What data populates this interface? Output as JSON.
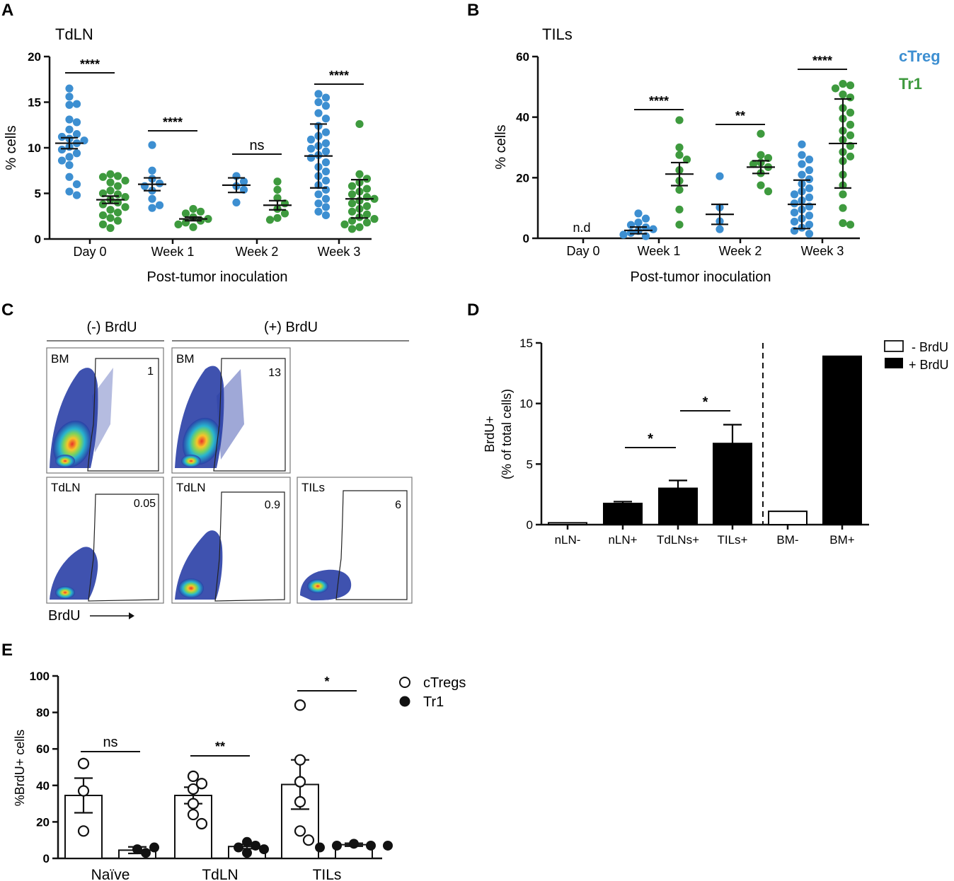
{
  "colors": {
    "ctreg": "#3d8fd1",
    "tr1": "#3e9a3e",
    "axis": "#111111"
  },
  "chart_data": [
    {
      "panel": "A",
      "type": "scatter",
      "title": "TdLN",
      "xlabel": "Post-tumor inoculation",
      "ylabel": "% cells",
      "ylim": [
        0,
        20
      ],
      "yticks": [
        "0",
        "5",
        "10",
        "15",
        "20"
      ],
      "categories": [
        "Day 0",
        "Week 1",
        "Week 2",
        "Week 3"
      ],
      "series": [
        {
          "name": "cTreg",
          "color": "#3d8fd1",
          "points": [
            [
              16.5,
              15.6,
              14.8,
              14.7,
              13.1,
              12.8,
              12.0,
              11.5,
              11.2,
              11.0,
              10.8,
              10.5,
              10.1,
              9.8,
              9.4,
              9.0,
              8.6,
              8.1,
              6.8,
              6.0,
              5.2,
              4.8
            ],
            [
              10.3,
              7.5,
              6.6,
              6.1,
              5.8,
              5.3,
              4.4,
              3.7,
              3.4
            ],
            [
              6.9,
              6.3,
              5.8,
              5.4,
              4.0
            ],
            [
              15.9,
              15.5,
              15.0,
              14.6,
              13.8,
              13.2,
              12.4,
              11.7,
              11.3,
              10.9,
              10.5,
              10.2,
              9.9,
              9.6,
              9.2,
              8.9,
              8.4,
              7.9,
              7.4,
              6.9,
              6.4,
              5.9,
              5.4,
              4.9,
              4.4,
              3.9,
              3.5,
              3.0,
              2.6
            ]
          ],
          "mean": [
            10.5,
            6.0,
            5.9,
            9.1
          ],
          "err": [
            0.6,
            0.7,
            0.8,
            3.5
          ]
        },
        {
          "name": "Tr1",
          "color": "#3e9a3e",
          "points": [
            [
              7.1,
              6.9,
              6.8,
              6.4,
              6.2,
              5.8,
              5.3,
              5.0,
              4.9,
              4.6,
              4.3,
              4.0,
              3.8,
              3.5,
              3.2,
              2.9,
              2.6,
              2.3,
              2.0,
              1.6,
              1.2
            ],
            [
              3.3,
              3.0,
              2.8,
              2.4,
              2.2,
              2.0,
              1.8,
              1.6,
              1.3
            ],
            [
              6.3,
              5.4,
              4.5,
              3.9,
              3.3,
              2.8,
              2.3,
              2.1
            ],
            [
              12.6,
              7.1,
              6.6,
              6.2,
              5.8,
              5.5,
              5.2,
              4.9,
              4.6,
              4.4,
              4.2,
              3.9,
              3.6,
              3.3,
              3.0,
              2.7,
              2.4,
              2.2,
              2.0,
              1.8,
              1.6,
              1.3,
              1.1
            ]
          ],
          "mean": [
            4.3,
            2.2,
            3.7,
            4.4
          ],
          "err": [
            0.4,
            0.2,
            0.5,
            2.1
          ]
        }
      ],
      "annotations": [
        "****",
        "****",
        "ns",
        "****"
      ]
    },
    {
      "panel": "B",
      "type": "scatter",
      "title": "TILs",
      "xlabel": "Post-tumor inoculation",
      "ylabel": "% cells",
      "ylim": [
        0,
        60
      ],
      "yticks": [
        "0",
        "20",
        "40",
        "60"
      ],
      "categories": [
        "Day 0",
        "Week 1",
        "Week 2",
        "Week 3"
      ],
      "nd_label": "n.d",
      "legend": [
        "cTreg",
        "Tr1"
      ],
      "series": [
        {
          "name": "cTreg",
          "color": "#3d8fd1",
          "points": [
            [],
            [
              8.2,
              6.5,
              5.2,
              4.4,
              3.6,
              3.0,
              2.4,
              1.8,
              1.2,
              0.7
            ],
            [
              20.5,
              10.2,
              5.6,
              3.0
            ],
            [
              31.0,
              27.5,
              26.0,
              24.5,
              22.5,
              21.0,
              19.5,
              18.0,
              16.5,
              15.5,
              14.5,
              13.5,
              12.5,
              11.5,
              10.5,
              9.5,
              8.5,
              7.5,
              6.5,
              5.5,
              4.5,
              3.5,
              2.5,
              1.5
            ]
          ],
          "mean": [
            null,
            2.6,
            7.9,
            11.2
          ],
          "err": [
            null,
            1.1,
            3.3,
            8.0
          ]
        },
        {
          "name": "Tr1",
          "color": "#3e9a3e",
          "points": [
            [],
            [
              39.0,
              30.0,
              27.5,
              26.0,
              22.5,
              19.0,
              16.0,
              9.5,
              4.5
            ],
            [
              34.5,
              27.5,
              26.5,
              25.0,
              24.5,
              23.5,
              21.5,
              17.5,
              15.5
            ],
            [
              51.0,
              50.5,
              49.5,
              47.5,
              46.5,
              43.0,
              41.5,
              39.5,
              37.5,
              35.5,
              34.0,
              32.5,
              30.5,
              28.5,
              27.0,
              25.5,
              21.0,
              17.5,
              14.5,
              10.0,
              5.0,
              4.5
            ]
          ],
          "mean": [
            null,
            21.2,
            23.5,
            31.3
          ],
          "err": [
            null,
            3.8,
            2.1,
            14.7
          ]
        }
      ],
      "annotations": [
        "****",
        "**",
        "****"
      ]
    },
    {
      "panel": "C",
      "type": "flow-cytometry",
      "group_labels": [
        "(-) BrdU",
        "(+) BrdU"
      ],
      "plots": [
        {
          "tissue": "BM",
          "gate_value": "1"
        },
        {
          "tissue": "BM",
          "gate_value": "13"
        },
        {
          "tissue": "TdLN",
          "gate_value": "0.05"
        },
        {
          "tissue": "TdLN",
          "gate_value": "0.9"
        },
        {
          "tissue": "TILs",
          "gate_value": "6"
        }
      ],
      "axis_label": "BrdU"
    },
    {
      "panel": "D",
      "type": "bar",
      "ylabel_line1": "BrdU+",
      "ylabel_line2": "(% of total cells)",
      "ylim": [
        0,
        15
      ],
      "yticks": [
        "0",
        "5",
        "10",
        "15"
      ],
      "categories": [
        "nLN-",
        "nLN+",
        "TdLNs+",
        "TILs+",
        "BM-",
        "BM+"
      ],
      "values": [
        0.15,
        1.75,
        3.0,
        6.7,
        1.1,
        13.9
      ],
      "errors": [
        0.0,
        0.15,
        0.65,
        1.55,
        0.0,
        0.0
      ],
      "fill": [
        "white",
        "black",
        "black",
        "black",
        "white",
        "black"
      ],
      "legend": [
        "- BrdU",
        "+ BrdU"
      ],
      "annotations": [
        "*",
        "*"
      ]
    },
    {
      "panel": "E",
      "type": "bar",
      "ylabel": "%BrdU+ cells",
      "ylim": [
        0,
        100
      ],
      "yticks": [
        "0",
        "20",
        "40",
        "60",
        "80",
        "100"
      ],
      "categories": [
        "Naïve",
        "TdLN",
        "TILs"
      ],
      "series": [
        {
          "name": "cTregs",
          "marker": "open-circle",
          "values": [
            34.5,
            34.5,
            40.5
          ],
          "errors": [
            9.5,
            4.5,
            13.5
          ],
          "points": [
            [
              52,
              37,
              15
            ],
            [
              45,
              41,
              38,
              30,
              24,
              19
            ],
            [
              84,
              54,
              42,
              31,
              15,
              10
            ]
          ]
        },
        {
          "name": "Tr1",
          "marker": "filled-circle",
          "values": [
            4.5,
            6.5,
            7.5
          ],
          "errors": [
            1.8,
            1.2,
            0.8
          ],
          "points": [
            [
              5,
              6,
              3
            ],
            [
              9,
              7,
              6,
              5,
              3
            ],
            [
              8,
              7,
              7,
              7,
              6
            ]
          ]
        }
      ],
      "legend": [
        "cTregs",
        "Tr1"
      ],
      "annotations": [
        "ns",
        "**",
        "*"
      ]
    }
  ]
}
